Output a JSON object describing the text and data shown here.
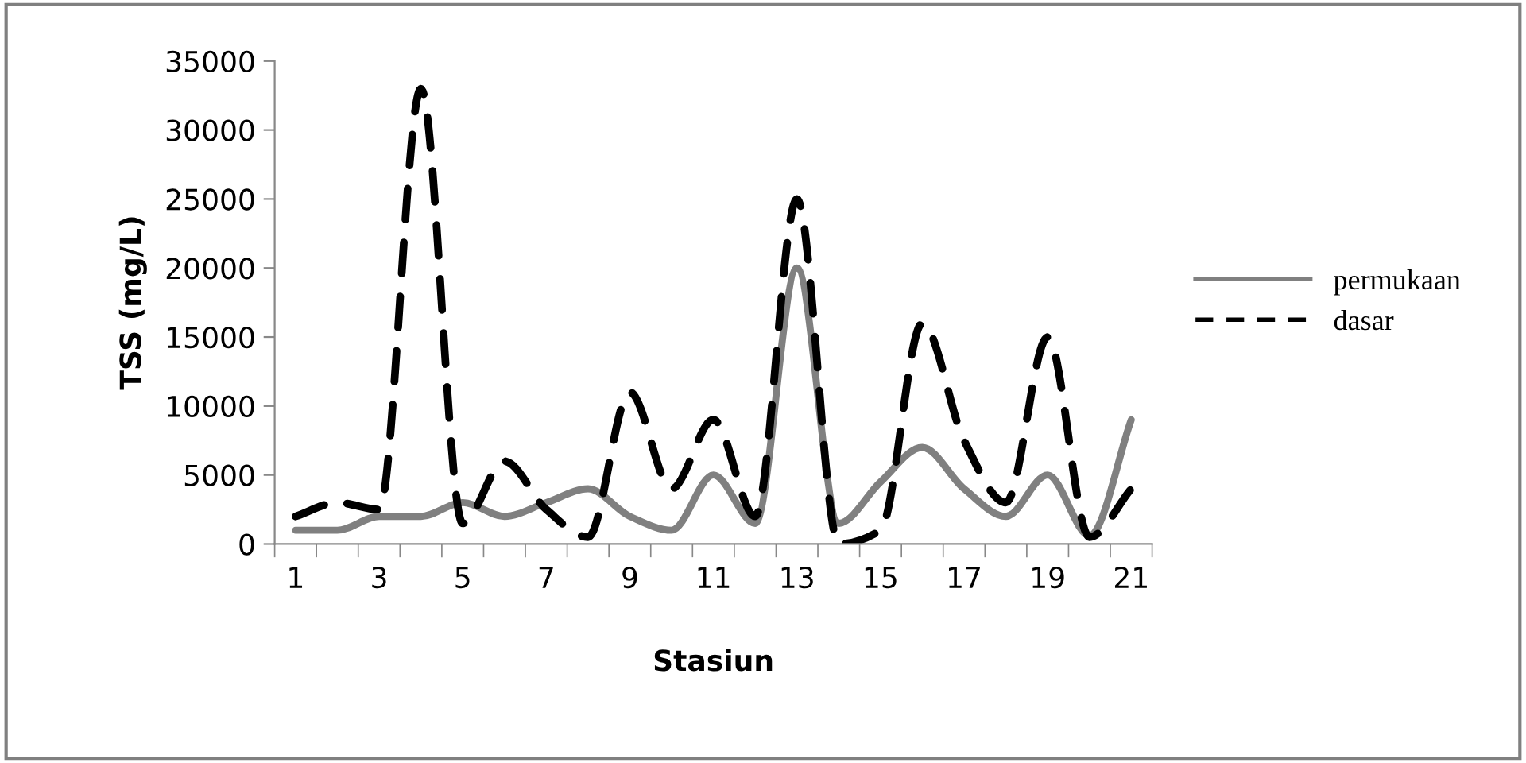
{
  "chart_data": {
    "type": "line",
    "xlabel": "Stasiun",
    "ylabel": "TSS (mg/L)",
    "categories": [
      "1",
      null,
      "3",
      null,
      "5",
      null,
      "7",
      null,
      "9",
      null,
      "11",
      null,
      "13",
      null,
      "15",
      null,
      "17",
      null,
      "19",
      null,
      "21"
    ],
    "series": [
      {
        "name": "permukaan",
        "color": "#808080",
        "line_style": "solid",
        "values": [
          1000,
          1000,
          2000,
          2000,
          3000,
          2000,
          3000,
          4000,
          2000,
          1000,
          5000,
          1500,
          20000,
          1500,
          4500,
          7000,
          4000,
          2000,
          5000,
          600,
          9000
        ]
      },
      {
        "name": "dasar",
        "color": "#000000",
        "line_style": "dashed",
        "values": [
          2000,
          3000,
          2500,
          33000,
          1500,
          6000,
          2500,
          500,
          11000,
          4000,
          9000,
          2000,
          25000,
          0,
          1000,
          16000,
          7500,
          3000,
          15000,
          500,
          4000
        ]
      }
    ],
    "ylim": [
      0,
      35000
    ],
    "yticks": [
      0,
      5000,
      10000,
      15000,
      20000,
      25000,
      30000,
      35000
    ],
    "grid": false,
    "legend": "right",
    "marker": "none"
  }
}
